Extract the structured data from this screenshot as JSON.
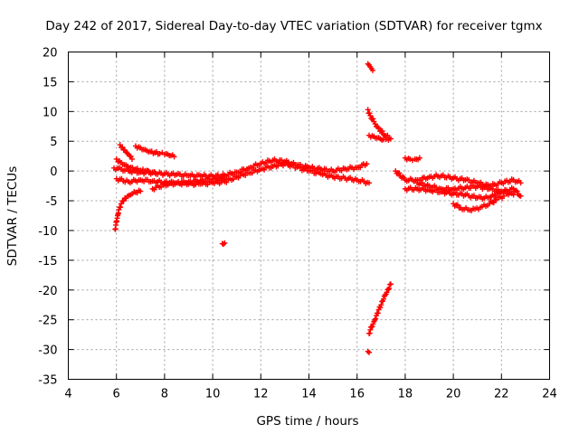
{
  "chart_data": {
    "type": "scatter",
    "title": "Day 242 of 2017, Sidereal Day-to-day VTEC variation (SDTVAR) for receiver tgmx",
    "xlabel": "GPS time / hours",
    "ylabel": "SDTVAR / TECUs",
    "xlim": [
      4,
      24
    ],
    "ylim": [
      -35,
      20
    ],
    "xticks": [
      4,
      6,
      8,
      10,
      12,
      14,
      16,
      18,
      20,
      22,
      24
    ],
    "yticks": [
      20,
      15,
      10,
      5,
      0,
      -5,
      -10,
      -15,
      -20,
      -25,
      -30,
      -35
    ],
    "grid": true,
    "marker": "+",
    "color": "#ff0000",
    "series": [
      {
        "name": "main-band-upper",
        "x": [
          5.9,
          6.2,
          6.5,
          7.0,
          7.5,
          8.0,
          8.5,
          9.0,
          9.5,
          10.0,
          10.5,
          11.0,
          11.5,
          12.0,
          12.5,
          13.0,
          13.5,
          14.0,
          14.5,
          15.0,
          15.5,
          16.0,
          16.4
        ],
        "y": [
          0.5,
          0.3,
          0.0,
          -0.2,
          -0.3,
          -0.5,
          -0.6,
          -0.8,
          -0.8,
          -0.9,
          -0.7,
          -0.2,
          0.5,
          1.3,
          1.8,
          1.6,
          1.0,
          0.6,
          0.3,
          0.0,
          0.4,
          0.6,
          1.2
        ]
      },
      {
        "name": "main-band-lower",
        "x": [
          6.0,
          6.5,
          7.0,
          7.5,
          8.0,
          8.5,
          9.0,
          9.5,
          10.0,
          10.5,
          11.0,
          11.5,
          12.0,
          12.5,
          13.0,
          13.5,
          14.0,
          14.5,
          15.0,
          15.5,
          16.0,
          16.5
        ],
        "y": [
          -1.3,
          -1.8,
          -1.5,
          -1.7,
          -1.9,
          -2.0,
          -2.2,
          -2.2,
          -2.0,
          -1.8,
          -1.0,
          -0.3,
          0.3,
          0.8,
          1.2,
          0.6,
          0.0,
          -0.5,
          -1.0,
          -1.2,
          -1.5,
          -2.0
        ]
      },
      {
        "name": "early-rising-arc",
        "x": [
          6.0,
          6.2,
          6.4,
          6.6,
          6.8,
          7.0,
          7.2,
          7.4,
          7.6
        ],
        "y": [
          2.0,
          1.4,
          1.0,
          0.6,
          0.3,
          0.1,
          0.0,
          -0.2,
          -0.3
        ]
      },
      {
        "name": "early-top-arc",
        "x": [
          6.8,
          7.0,
          7.2,
          7.4,
          7.6,
          7.8,
          8.0,
          8.2,
          8.4
        ],
        "y": [
          4.2,
          3.9,
          3.6,
          3.3,
          3.1,
          2.9,
          2.8,
          2.6,
          2.4
        ]
      },
      {
        "name": "early-top-arc-2",
        "x": [
          6.15,
          6.25,
          6.35,
          6.45,
          6.55,
          6.65
        ],
        "y": [
          4.4,
          4.0,
          3.5,
          3.0,
          2.5,
          2.0
        ]
      },
      {
        "name": "early-falling-arc",
        "x": [
          5.95,
          6.0,
          6.05,
          6.1,
          6.2,
          6.3,
          6.4,
          6.6,
          6.8,
          7.0
        ],
        "y": [
          -9.8,
          -8.5,
          -7.5,
          -6.5,
          -5.5,
          -5.0,
          -4.6,
          -4.0,
          -3.6,
          -3.4
        ]
      },
      {
        "name": "early-lower-arc",
        "x": [
          7.5,
          8.0,
          8.5,
          9.0,
          9.5,
          10.0,
          10.5
        ],
        "y": [
          -3.0,
          -2.3,
          -2.0,
          -1.8,
          -1.6,
          -1.4,
          -1.2
        ]
      },
      {
        "name": "outlier-10.5",
        "x": [
          10.4,
          10.45,
          10.5
        ],
        "y": [
          -12.2,
          -12.3,
          -12.1
        ]
      },
      {
        "name": "late-upper-arc",
        "x": [
          16.45,
          16.5,
          16.55,
          16.6,
          16.65
        ],
        "y": [
          18.0,
          17.8,
          17.5,
          17.2,
          16.9
        ]
      },
      {
        "name": "late-mid-arc",
        "x": [
          16.45,
          16.55,
          16.7,
          16.85,
          17.0,
          17.2,
          17.4
        ],
        "y": [
          10.3,
          9.3,
          8.3,
          7.4,
          6.7,
          5.9,
          5.4
        ]
      },
      {
        "name": "late-mid-arc-2",
        "x": [
          16.5,
          16.7,
          16.9,
          17.1,
          17.3
        ],
        "y": [
          6.0,
          5.8,
          5.6,
          5.3,
          5.2
        ]
      },
      {
        "name": "late-steep-arc",
        "x": [
          16.5,
          16.6,
          16.7,
          16.8,
          16.9,
          17.0,
          17.1,
          17.2,
          17.3,
          17.4
        ],
        "y": [
          -27.3,
          -26.2,
          -25.3,
          -24.3,
          -23.3,
          -22.5,
          -21.5,
          -20.7,
          -19.9,
          -19.0
        ]
      },
      {
        "name": "outlier-16.5",
        "x": [
          16.45,
          16.5
        ],
        "y": [
          -30.3,
          -30.5
        ]
      },
      {
        "name": "right-band-upper",
        "x": [
          17.6,
          18.0,
          18.5,
          19.0,
          19.5,
          20.0,
          20.5,
          21.0,
          21.5,
          22.0,
          22.5,
          22.8
        ],
        "y": [
          0.0,
          -1.5,
          -1.5,
          -1.0,
          -0.8,
          -1.2,
          -1.5,
          -2.0,
          -2.5,
          -2.0,
          -1.5,
          -2.0
        ]
      },
      {
        "name": "right-band-lower",
        "x": [
          18.0,
          18.5,
          19.0,
          19.5,
          20.0,
          20.5,
          21.0,
          21.5,
          22.0,
          22.5,
          22.8
        ],
        "y": [
          -3.0,
          -3.0,
          -3.2,
          -3.5,
          -3.8,
          -4.0,
          -4.5,
          -4.5,
          -3.5,
          -3.0,
          -4.2
        ]
      },
      {
        "name": "right-small-arc",
        "x": [
          18.0,
          18.2,
          18.4,
          18.6
        ],
        "y": [
          2.2,
          2.0,
          2.0,
          2.2
        ]
      },
      {
        "name": "right-dip-arc",
        "x": [
          20.0,
          20.3,
          20.6,
          20.9,
          21.2,
          21.5,
          21.8,
          22.1
        ],
        "y": [
          -5.5,
          -6.2,
          -6.5,
          -6.4,
          -6.0,
          -5.5,
          -4.8,
          -4.2
        ]
      },
      {
        "name": "right-cross-arc",
        "x": [
          18.5,
          19.0,
          19.5,
          20.0,
          20.5,
          21.0,
          21.5,
          22.0,
          22.5
        ],
        "y": [
          -2.0,
          -2.5,
          -3.0,
          -3.0,
          -2.8,
          -2.6,
          -3.0,
          -3.5,
          -4.0
        ]
      }
    ]
  }
}
